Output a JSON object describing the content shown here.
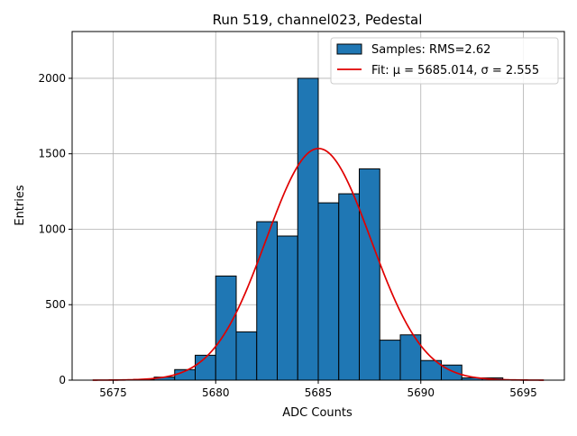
{
  "chart_data": {
    "type": "bar",
    "title": "Run 519, channel023, Pedestal",
    "xlabel": "ADC Counts",
    "ylabel": "Entries",
    "xlim": [
      5673,
      5697
    ],
    "ylim": [
      0,
      2310
    ],
    "grid": true,
    "legend_placement": "top-right",
    "xticks": [
      5675,
      5680,
      5685,
      5690,
      5695
    ],
    "yticks": [
      0,
      500,
      1000,
      1500,
      2000
    ],
    "histogram": {
      "name": "Samples: RMS=2.62",
      "color": "#1f77b4",
      "edge_color": "#000000",
      "bins": [
        {
          "x0": 5676,
          "x1": 5677,
          "count": 5
        },
        {
          "x0": 5677,
          "x1": 5678,
          "count": 20
        },
        {
          "x0": 5678,
          "x1": 5679,
          "count": 70
        },
        {
          "x0": 5679,
          "x1": 5680,
          "count": 165
        },
        {
          "x0": 5680,
          "x1": 5681,
          "count": 690
        },
        {
          "x0": 5681,
          "x1": 5682,
          "count": 320
        },
        {
          "x0": 5682,
          "x1": 5683,
          "count": 1050
        },
        {
          "x0": 5683,
          "x1": 5684,
          "count": 955
        },
        {
          "x0": 5684,
          "x1": 5685,
          "count": 2000
        },
        {
          "x0": 5685,
          "x1": 5686,
          "count": 1175
        },
        {
          "x0": 5686,
          "x1": 5687,
          "count": 1235
        },
        {
          "x0": 5687,
          "x1": 5688,
          "count": 1400
        },
        {
          "x0": 5688,
          "x1": 5689,
          "count": 265
        },
        {
          "x0": 5689,
          "x1": 5690,
          "count": 300
        },
        {
          "x0": 5690,
          "x1": 5691,
          "count": 130
        },
        {
          "x0": 5691,
          "x1": 5692,
          "count": 100
        },
        {
          "x0": 5692,
          "x1": 5693,
          "count": 15
        },
        {
          "x0": 5693,
          "x1": 5694,
          "count": 15
        }
      ]
    },
    "fit": {
      "name": "Fit: μ = 5685.014, σ = 2.555",
      "color": "#e00000",
      "mu": 5685.014,
      "sigma": 2.555,
      "amplitude": 1535,
      "x_range": [
        5674,
        5696
      ]
    }
  }
}
